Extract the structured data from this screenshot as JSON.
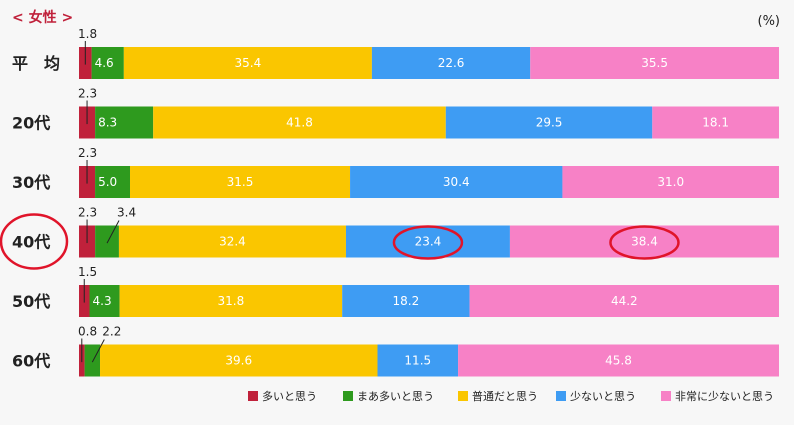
{
  "chart_data": {
    "type": "bar",
    "orientation": "horizontal",
    "stacked": true,
    "percent_stacked": true,
    "title": "< 女性 >",
    "unit": "(%)",
    "categories": [
      "平　均",
      "20代",
      "30代",
      "40代",
      "50代",
      "60代"
    ],
    "series": [
      {
        "name": "多いと思う",
        "color": "#c0213b",
        "values": [
          1.8,
          2.3,
          2.3,
          2.3,
          1.5,
          0.8
        ]
      },
      {
        "name": "まあ多いと思う",
        "color": "#2e9a1e",
        "values": [
          4.6,
          8.3,
          5.0,
          3.4,
          4.3,
          2.2
        ]
      },
      {
        "name": "普通だと思う",
        "color": "#fac600",
        "values": [
          35.4,
          41.8,
          31.5,
          32.4,
          31.8,
          39.6
        ]
      },
      {
        "name": "少ないと思う",
        "color": "#3e9cf3",
        "values": [
          22.6,
          29.5,
          30.4,
          23.4,
          18.2,
          11.5
        ]
      },
      {
        "name": "非常に少ないと思う",
        "color": "#f781c6",
        "values": [
          35.5,
          18.1,
          31.0,
          38.4,
          44.2,
          45.8
        ]
      }
    ],
    "legend_position": "bottom-right",
    "grid": false,
    "highlight": {
      "category_index": 3,
      "segments": [
        {
          "series_index": 3
        },
        {
          "series_index": 4
        }
      ],
      "color": "#e0142a"
    }
  }
}
